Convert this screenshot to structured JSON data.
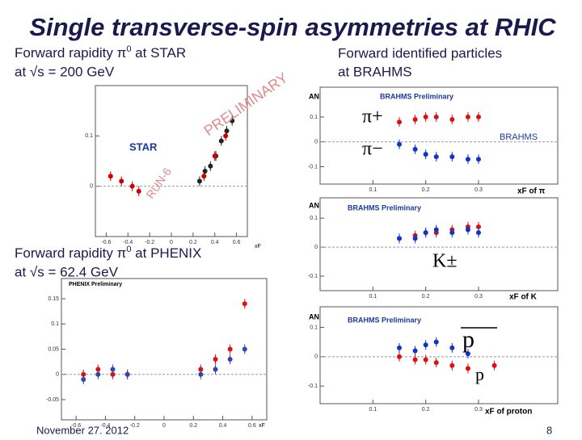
{
  "title": "Single transverse-spin asymmetries at RHIC",
  "star_caption": {
    "pre": "Forward rapidity π",
    "sup": "0",
    "post": " at STAR",
    "line2": "at √s = 200 GeV"
  },
  "brahms_caption": {
    "line1": "Forward identified particles",
    "line2": "at BRAHMS"
  },
  "phenix_caption": {
    "pre": "Forward rapidity π",
    "sup": "0",
    "post": " at PHENIX",
    "line2": "at √s = 62.4 GeV"
  },
  "footer": {
    "date": "November 27. 2012",
    "page": "8"
  },
  "panel_labels": {
    "pi_plus": "π+",
    "pi_minus": "π−",
    "kaon": "K±",
    "antiproton": "p",
    "proton": "p"
  },
  "plots": {
    "star": {
      "labels": {
        "logo": "STAR",
        "watermark": "PRELIMINARY",
        "run": "RUN-6",
        "xaxis": "xF"
      },
      "xlim": [
        -0.7,
        0.7
      ],
      "ylim": [
        -0.1,
        0.2
      ],
      "xticks": [
        -0.6,
        -0.4,
        -0.2,
        0,
        0.2,
        0.4,
        0.6
      ],
      "yticks": [
        0,
        0.1
      ],
      "series": [
        {
          "color": "#222222",
          "x": [
            0.26,
            0.31,
            0.36,
            0.41,
            0.46,
            0.51,
            0.56
          ],
          "y": [
            0.01,
            0.03,
            0.04,
            0.06,
            0.09,
            0.11,
            0.13
          ]
        },
        {
          "color": "#cc0000",
          "x": [
            -0.56,
            -0.46,
            -0.36,
            -0.3,
            0.3,
            0.4,
            0.5
          ],
          "y": [
            0.02,
            0.01,
            0.0,
            -0.01,
            0.02,
            0.06,
            0.1
          ]
        }
      ]
    },
    "brahms_pion": {
      "labels": {
        "header": "BRAHMS Preliminary",
        "yaxis": "AN",
        "xaxis": "xF of π",
        "logo": "BRAHMS"
      },
      "xlim": [
        0,
        0.45
      ],
      "ylim": [
        -0.17,
        0.22
      ],
      "xticks": [
        0.1,
        0.2,
        0.3
      ],
      "yticks": [
        0.1,
        0,
        -0.1
      ],
      "series": [
        {
          "color": "#dd1111",
          "x": [
            0.15,
            0.18,
            0.2,
            0.22,
            0.25,
            0.28,
            0.3
          ],
          "y": [
            0.08,
            0.09,
            0.1,
            0.1,
            0.09,
            0.1,
            0.1
          ]
        },
        {
          "color": "#1133cc",
          "x": [
            0.15,
            0.18,
            0.2,
            0.22,
            0.25,
            0.28,
            0.3
          ],
          "y": [
            -0.01,
            -0.03,
            -0.05,
            -0.06,
            -0.06,
            -0.07,
            -0.07
          ]
        }
      ]
    },
    "brahms_kaon": {
      "labels": {
        "header": "BRAHMS Preliminary",
        "yaxis": "AN",
        "xaxis": "xF of K"
      },
      "xlim": [
        0,
        0.45
      ],
      "ylim": [
        -0.15,
        0.17
      ],
      "xticks": [
        0.1,
        0.2,
        0.3
      ],
      "yticks": [
        0.1,
        0,
        -0.1
      ],
      "series": [
        {
          "color": "#dd1111",
          "x": [
            0.15,
            0.18,
            0.2,
            0.22,
            0.25,
            0.28,
            0.3
          ],
          "y": [
            0.03,
            0.04,
            0.05,
            0.05,
            0.06,
            0.07,
            0.07
          ]
        },
        {
          "color": "#1133cc",
          "x": [
            0.15,
            0.18,
            0.2,
            0.22,
            0.25,
            0.28,
            0.3
          ],
          "y": [
            0.03,
            0.03,
            0.05,
            0.06,
            0.05,
            0.06,
            0.05
          ]
        }
      ]
    },
    "brahms_proton": {
      "labels": {
        "header": "BRAHMS Preliminary",
        "yaxis": "AN",
        "xaxis": "xF of proton"
      },
      "xlim": [
        0,
        0.45
      ],
      "ylim": [
        -0.16,
        0.17
      ],
      "xticks": [
        0.1,
        0.2,
        0.3
      ],
      "yticks": [
        0.1,
        0,
        -0.1
      ],
      "series": [
        {
          "color": "#1133cc",
          "x": [
            0.15,
            0.18,
            0.2,
            0.22,
            0.25,
            0.28
          ],
          "y": [
            0.03,
            0.02,
            0.04,
            0.05,
            0.03,
            0.01
          ]
        },
        {
          "color": "#dd1111",
          "x": [
            0.15,
            0.18,
            0.2,
            0.22,
            0.25,
            0.28,
            0.33
          ],
          "y": [
            0.0,
            -0.01,
            -0.01,
            -0.02,
            -0.03,
            -0.04,
            -0.03
          ]
        }
      ]
    },
    "phenix": {
      "labels": {
        "header": "PHENIX Preliminary",
        "xaxis": "xF"
      },
      "xlim": [
        -0.7,
        0.7
      ],
      "ylim": [
        -0.09,
        0.19
      ],
      "xticks": [
        -0.6,
        -0.4,
        -0.2,
        0,
        0.2,
        0.4,
        0.6
      ],
      "yticks": [
        0.15,
        0.1,
        0.05,
        0,
        -0.05
      ],
      "series": [
        {
          "color": "#dd1111",
          "x": [
            -0.55,
            -0.45,
            -0.35,
            -0.25,
            0.25,
            0.35,
            0.45,
            0.55
          ],
          "y": [
            0.0,
            0.01,
            0.0,
            0.0,
            0.01,
            0.03,
            0.05,
            0.14
          ]
        },
        {
          "color": "#3344aa",
          "x": [
            -0.55,
            -0.45,
            -0.35,
            -0.25,
            0.25,
            0.35,
            0.45,
            0.55
          ],
          "y": [
            -0.01,
            0.0,
            0.01,
            0.0,
            0.0,
            0.01,
            0.03,
            0.05
          ]
        }
      ]
    }
  }
}
